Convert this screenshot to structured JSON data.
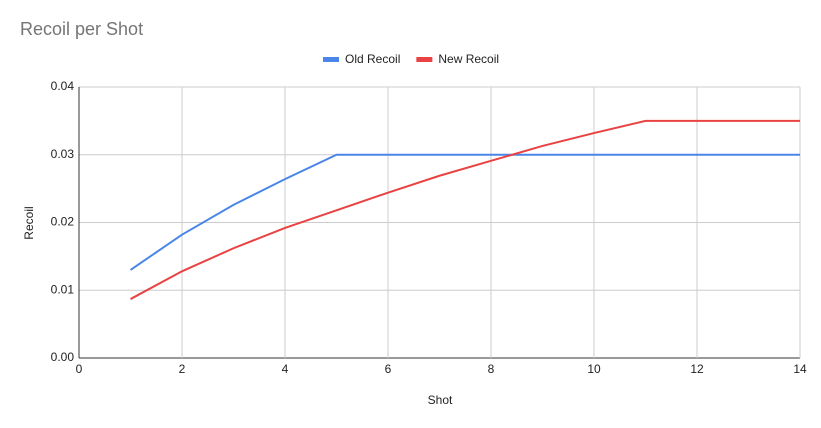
{
  "chart_data": {
    "type": "line",
    "title": "Recoil per Shot",
    "x_label": "Shot",
    "y_label": "Recoil",
    "x": [
      1,
      2,
      3,
      4,
      5,
      6,
      7,
      8,
      9,
      10,
      11,
      12,
      13,
      14
    ],
    "series": [
      {
        "name": "Old Recoil",
        "color": "#4a86e8",
        "values": [
          0.013,
          0.0182,
          0.0226,
          0.0264,
          0.03,
          0.03,
          0.03,
          0.03,
          0.03,
          0.03,
          0.03,
          0.03,
          0.03,
          0.03
        ]
      },
      {
        "name": "New Recoil",
        "color": "#e84342",
        "values": [
          0.0087,
          0.0128,
          0.0162,
          0.0192,
          0.0218,
          0.0244,
          0.0269,
          0.0291,
          0.0313,
          0.0332,
          0.035,
          0.035,
          0.035,
          0.035
        ]
      }
    ],
    "xlim": [
      0,
      14
    ],
    "xticks": [
      0,
      2,
      4,
      6,
      8,
      10,
      12,
      14
    ],
    "ylim": [
      0,
      0.04
    ],
    "yticks": [
      {
        "value": 0,
        "label": "0.00"
      },
      0.01,
      0.02,
      0.03,
      0.04
    ],
    "grid": true,
    "legend": "top"
  }
}
